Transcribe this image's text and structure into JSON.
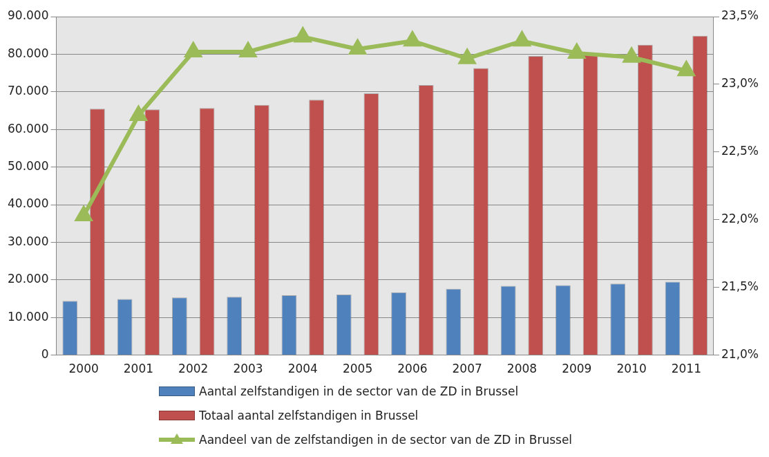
{
  "chart_data": {
    "type": "bar",
    "categories": [
      "2000",
      "2001",
      "2002",
      "2003",
      "2004",
      "2005",
      "2006",
      "2007",
      "2008",
      "2009",
      "2010",
      "2011"
    ],
    "series": [
      {
        "name": "Aantal zelfstandigen in de sector van de ZD in Brussel",
        "color": "#4f81bd",
        "values": [
          14400,
          14900,
          15300,
          15500,
          15900,
          16100,
          16700,
          17600,
          18400,
          18600,
          19000,
          19500
        ]
      },
      {
        "name": "Totaal aantal zelfstandigen in Brussel",
        "color": "#c0504d",
        "values": [
          65500,
          65300,
          65700,
          66500,
          67900,
          69600,
          71800,
          76300,
          79500,
          80000,
          82500,
          84900
        ]
      },
      {
        "name": "Aandeel van de zelfstandigen in de sector van de ZD in Brussel",
        "type": "line",
        "axis": "y2",
        "color": "#9bbb59",
        "values": [
          22.03,
          22.77,
          23.24,
          23.24,
          23.35,
          23.26,
          23.32,
          23.19,
          23.32,
          23.23,
          23.2,
          23.1
        ]
      }
    ],
    "ylim": [
      0,
      90000
    ],
    "yticks": [
      0,
      {
        "value": 10000,
        "label": "10.000"
      },
      {
        "value": 20000,
        "label": "20.000"
      },
      {
        "value": 30000,
        "label": "30.000"
      },
      {
        "value": 40000,
        "label": "40.000"
      },
      {
        "value": 50000,
        "label": "50.000"
      },
      {
        "value": 60000,
        "label": "60.000"
      },
      {
        "value": 70000,
        "label": "70.000"
      },
      {
        "value": 80000,
        "label": "80.000"
      },
      {
        "value": 90000,
        "label": "90.000"
      }
    ],
    "y2lim": [
      21,
      23.5
    ],
    "y2ticks": [
      {
        "value": 21,
        "label": "21,0%"
      },
      {
        "value": 21.5,
        "label": "21,5%"
      },
      {
        "value": 22,
        "label": "22,0%"
      },
      {
        "value": 22.5,
        "label": "22,5%"
      },
      {
        "value": 23,
        "label": "23,0%"
      },
      {
        "value": 23.5,
        "label": "23,5%"
      }
    ],
    "grid": "y",
    "legend": "bottom",
    "marker": "triangle"
  }
}
